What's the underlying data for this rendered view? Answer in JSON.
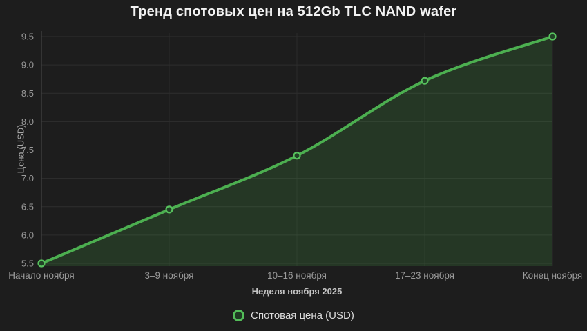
{
  "chart_data": {
    "type": "line",
    "title": "Тренд спотовых цен на 512Gb TLC NAND wafer",
    "xlabel": "Неделя ноября 2025",
    "ylabel": "Цена (USD)",
    "categories": [
      "Начало ноября",
      "3–9 ноября",
      "10–16 ноября",
      "17–23 ноября",
      "Конец ноября"
    ],
    "series": [
      {
        "name": "Спотовая цена (USD)",
        "values": [
          5.5,
          6.45,
          7.4,
          8.72,
          9.5
        ]
      }
    ],
    "ylim": [
      5.5,
      9.5
    ],
    "yticks": [
      "9.5",
      "9.0",
      "8.5",
      "8.0",
      "7.5",
      "7.0",
      "6.5",
      "6.0",
      "5.5"
    ],
    "grid": true,
    "legend_position": "bottom",
    "smooth": true
  },
  "legend": {
    "label": "Спотовая цена (USD)"
  },
  "colors": {
    "background": "#1d1d1d",
    "line": "#4caf50",
    "area_fill": "#4caf50",
    "area_opacity": "0.18",
    "marker_stroke": "#57c15d",
    "marker_fill": "#224227",
    "grid_h": "#2e2e2e",
    "grid_v": "#2a2a2a",
    "axis_line": "#3d3d3d",
    "tick_text": "#9b9b9b",
    "title_text": "#f2f2f2"
  }
}
